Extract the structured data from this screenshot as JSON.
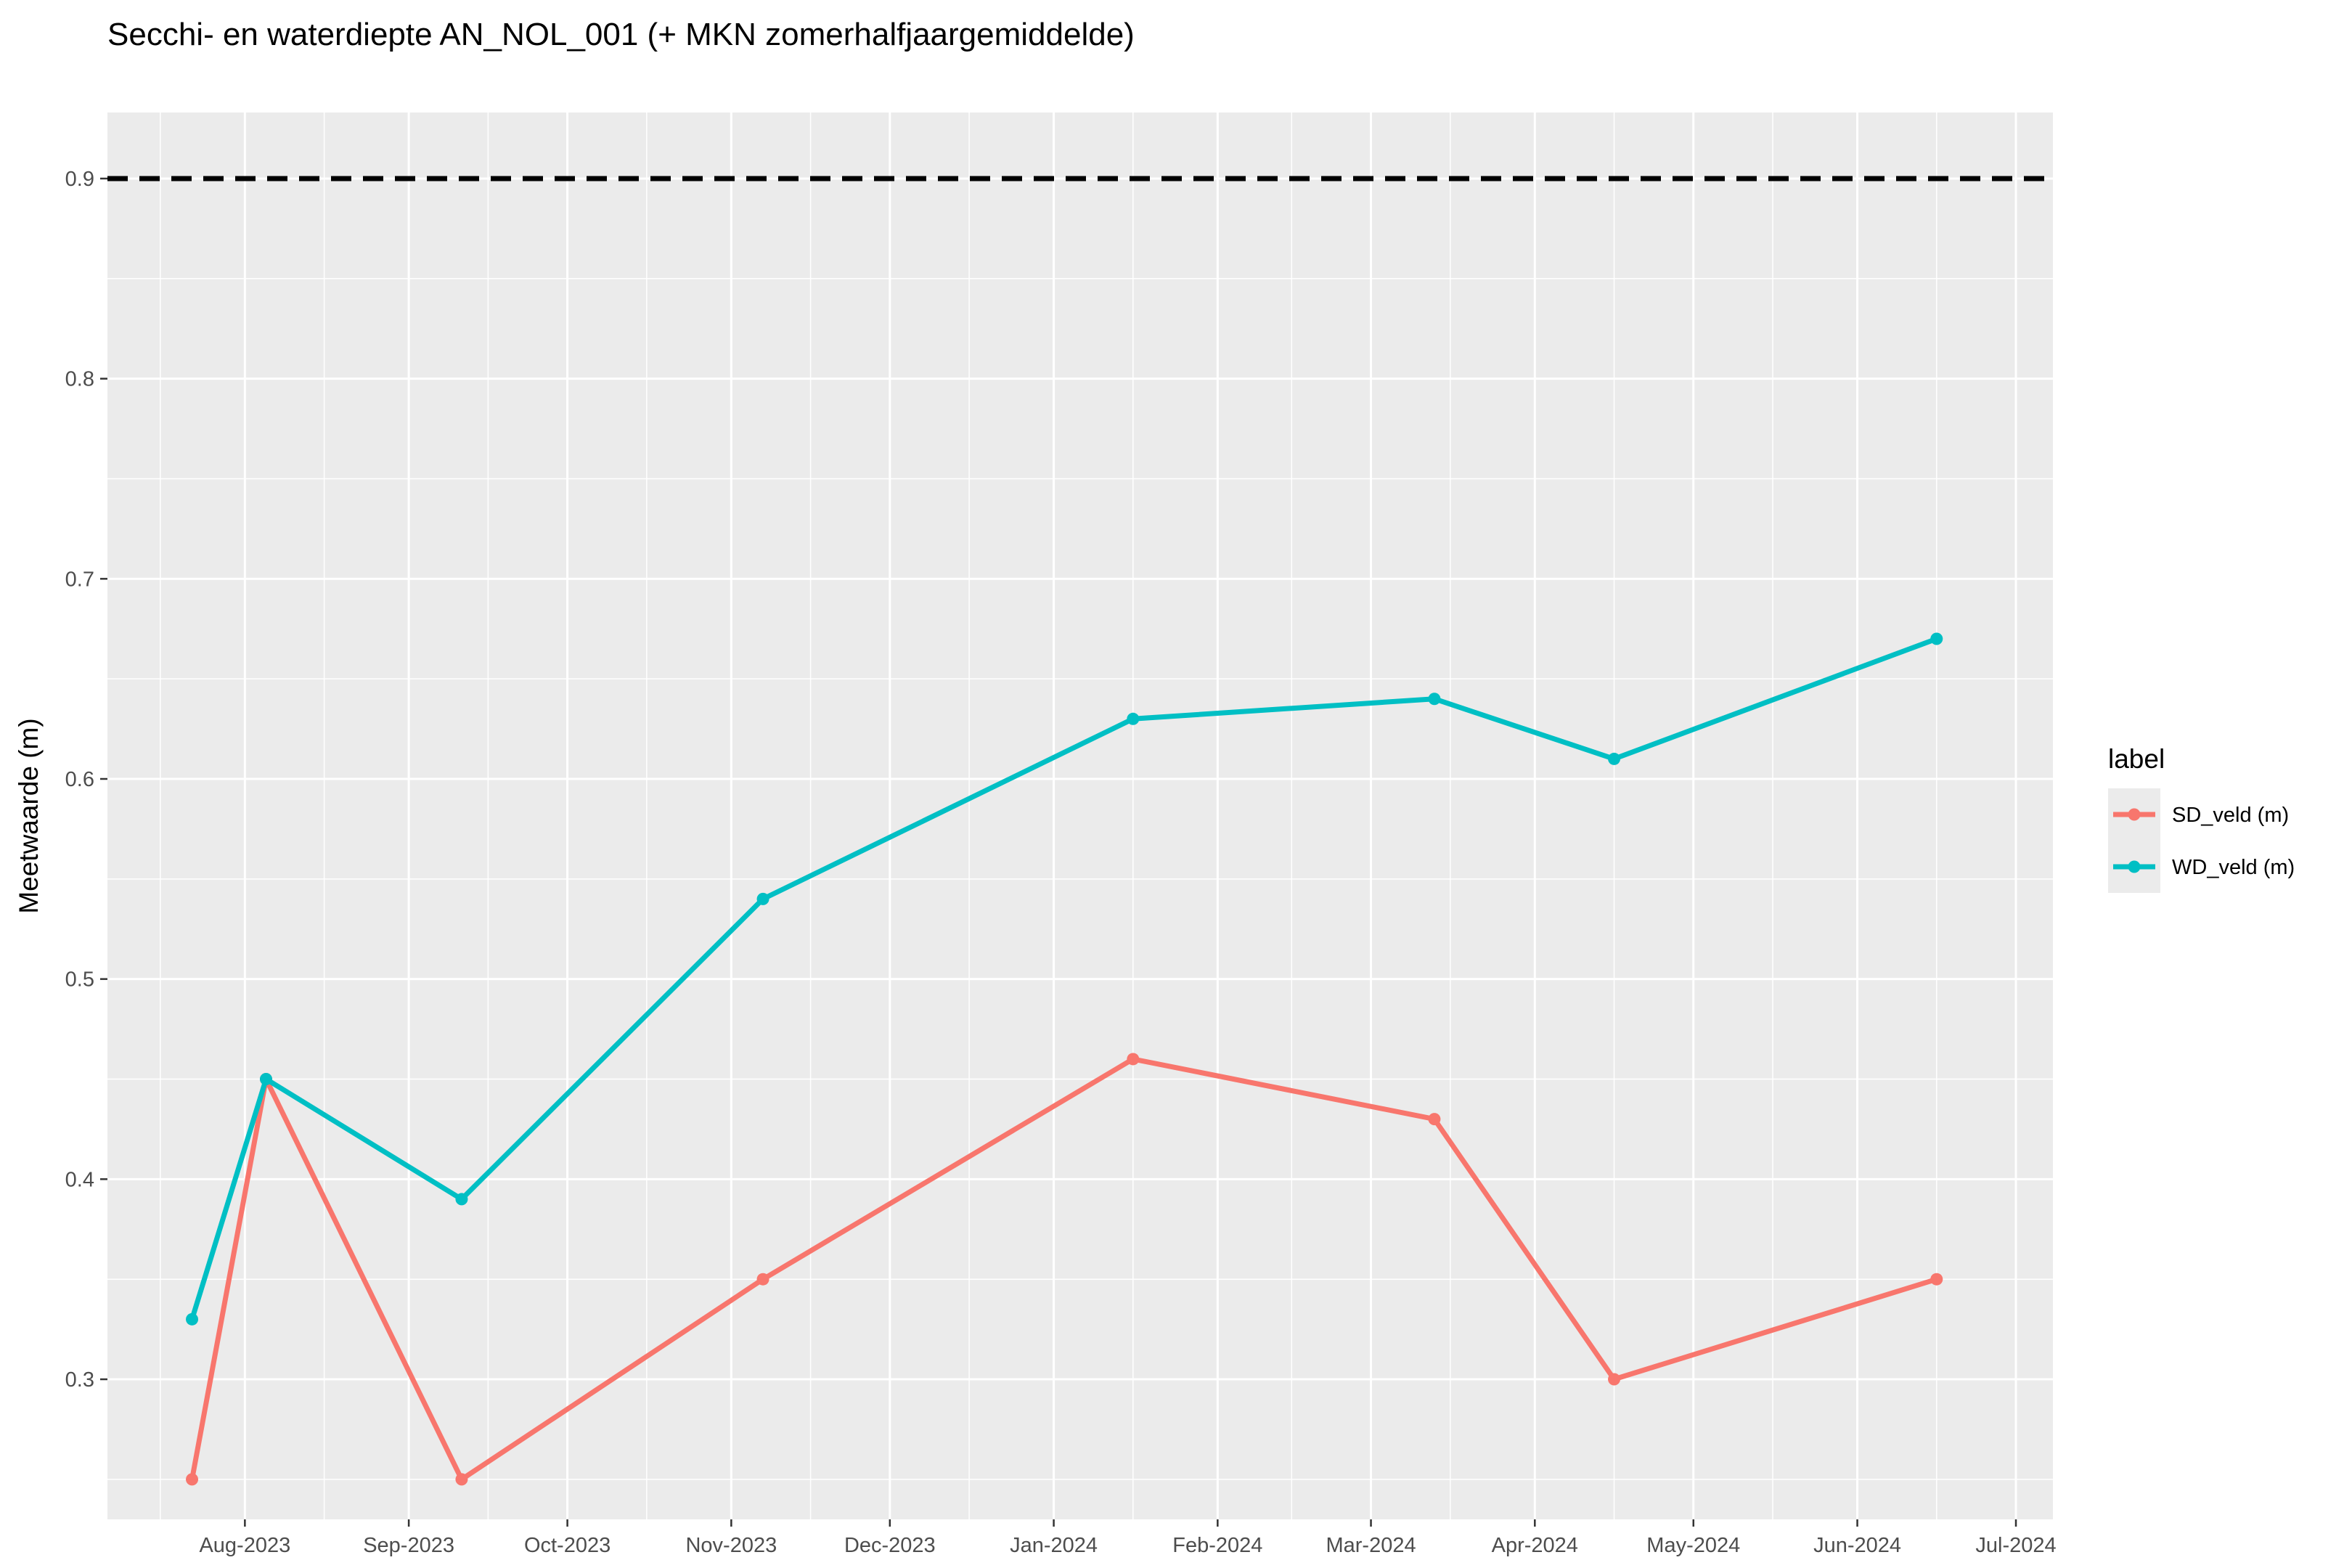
{
  "chart_data": {
    "type": "line",
    "title": "Secchi- en waterdiepte AN_NOL_001 (+ MKN  zomerhalfjaargemiddelde)",
    "xlabel": "",
    "ylabel": "Meetwaarde (m)",
    "xlim": [
      "2023-07-06",
      "2024-07-08"
    ],
    "ylim": [
      0.23,
      0.933
    ],
    "x_ticks": [
      {
        "date": "2023-08-01",
        "label": "Aug-2023"
      },
      {
        "date": "2023-09-01",
        "label": "Sep-2023"
      },
      {
        "date": "2023-10-01",
        "label": "Oct-2023"
      },
      {
        "date": "2023-11-01",
        "label": "Nov-2023"
      },
      {
        "date": "2023-12-01",
        "label": "Dec-2023"
      },
      {
        "date": "2024-01-01",
        "label": "Jan-2024"
      },
      {
        "date": "2024-02-01",
        "label": "Feb-2024"
      },
      {
        "date": "2024-03-01",
        "label": "Mar-2024"
      },
      {
        "date": "2024-04-01",
        "label": "Apr-2024"
      },
      {
        "date": "2024-05-01",
        "label": "May-2024"
      },
      {
        "date": "2024-06-01",
        "label": "Jun-2024"
      },
      {
        "date": "2024-07-01",
        "label": "Jul-2024"
      }
    ],
    "y_ticks": [
      {
        "value": 0.3,
        "label": "0.3"
      },
      {
        "value": 0.4,
        "label": "0.4"
      },
      {
        "value": 0.5,
        "label": "0.5"
      },
      {
        "value": 0.6,
        "label": "0.6"
      },
      {
        "value": 0.7,
        "label": "0.7"
      },
      {
        "value": 0.8,
        "label": "0.8"
      },
      {
        "value": 0.9,
        "label": "0.9"
      }
    ],
    "grid": true,
    "legend": {
      "title": "label",
      "placement": "right"
    },
    "series": [
      {
        "name": "SD_veld (m)",
        "color": "#F8766D",
        "points": [
          {
            "x": "2023-07-22",
            "y": 0.25
          },
          {
            "x": "2023-08-05",
            "y": 0.45
          },
          {
            "x": "2023-09-11",
            "y": 0.25
          },
          {
            "x": "2023-11-07",
            "y": 0.35
          },
          {
            "x": "2024-01-16",
            "y": 0.46
          },
          {
            "x": "2024-03-13",
            "y": 0.43
          },
          {
            "x": "2024-04-16",
            "y": 0.3
          },
          {
            "x": "2024-06-16",
            "y": 0.35
          }
        ]
      },
      {
        "name": "WD_veld (m)",
        "color": "#00BFC4",
        "points": [
          {
            "x": "2023-07-22",
            "y": 0.33
          },
          {
            "x": "2023-08-05",
            "y": 0.45
          },
          {
            "x": "2023-09-11",
            "y": 0.39
          },
          {
            "x": "2023-11-07",
            "y": 0.54
          },
          {
            "x": "2024-01-16",
            "y": 0.63
          },
          {
            "x": "2024-03-13",
            "y": 0.64
          },
          {
            "x": "2024-04-16",
            "y": 0.61
          },
          {
            "x": "2024-06-16",
            "y": 0.67
          }
        ]
      }
    ],
    "reference_line": {
      "y": 0.9,
      "style": "dashed",
      "color": "#000000"
    },
    "colors": {
      "panel_background": "#EBEBEB",
      "grid_line": "#FFFFFF",
      "tick_text": "#4D4D4D"
    }
  }
}
